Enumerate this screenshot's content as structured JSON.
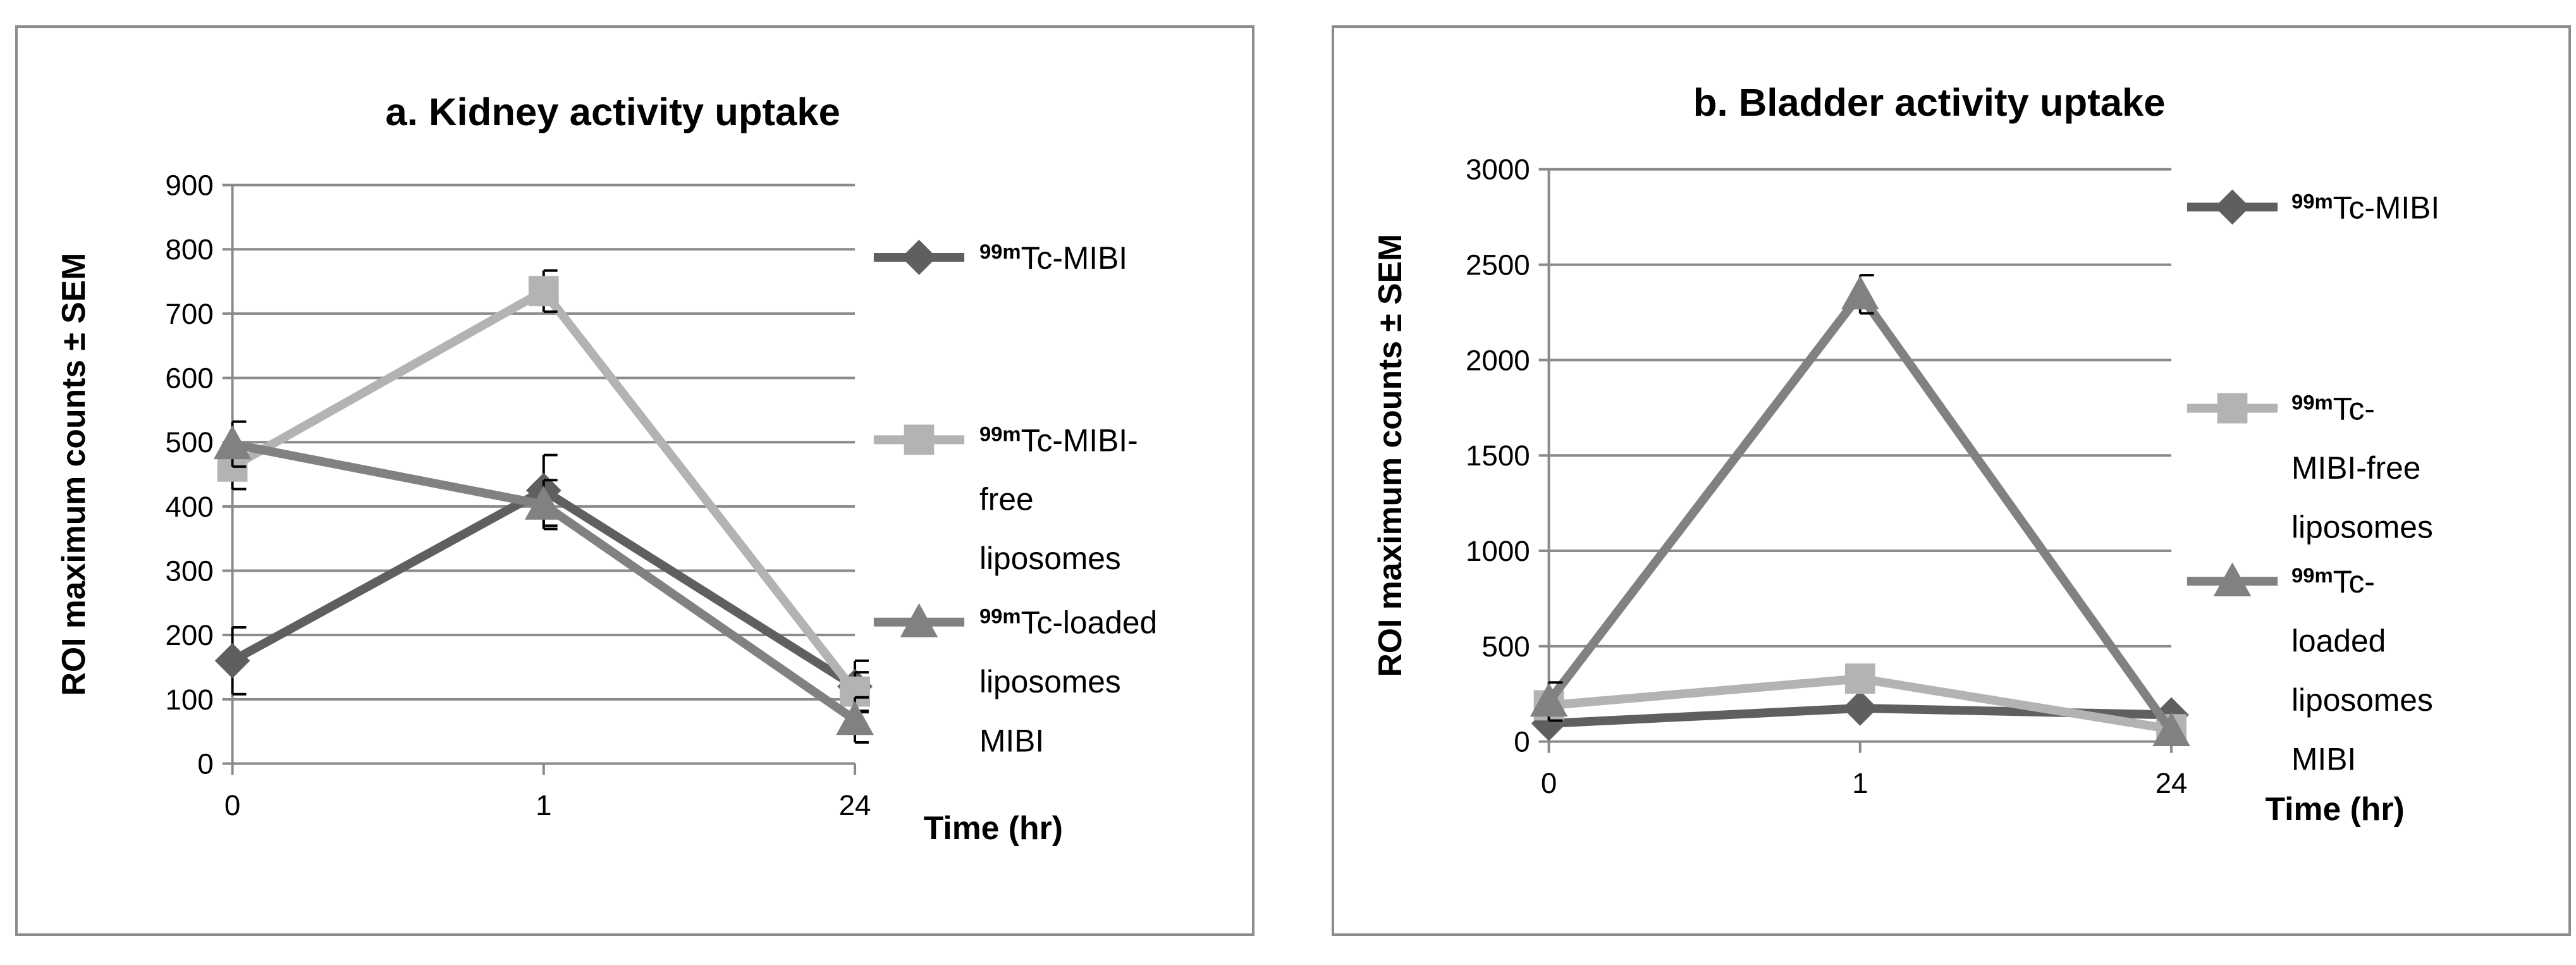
{
  "chart_data": [
    {
      "type": "line",
      "title": "a. Kidney activity uptake",
      "ylabel": "ROI maximum counts ± SEM",
      "xlabel": "Time (hr)",
      "categories": [
        "0",
        "1",
        "24"
      ],
      "ylim": [
        0,
        900
      ],
      "yticks": [
        0,
        100,
        200,
        300,
        400,
        500,
        600,
        700,
        800,
        900
      ],
      "grid": true,
      "legend_position": "right",
      "series": [
        {
          "name": "99mTc-MIBI",
          "sup": "99m",
          "label_lines": [
            "Tc-MIBI"
          ],
          "marker": "diamond",
          "color": "#5f5f5f",
          "values": [
            160,
            425,
            120
          ],
          "errors": [
            52,
            55,
            40
          ]
        },
        {
          "name": "99mTc-MIBI-free liposomes",
          "sup": "99m",
          "label_lines": [
            "Tc-MIBI-",
            "free",
            "liposomes"
          ],
          "marker": "square",
          "color": "#b3b3b3",
          "values": [
            462,
            735,
            112
          ],
          "errors": [
            35,
            32,
            30
          ]
        },
        {
          "name": "99mTc-loaded liposomes MIBI",
          "sup": "99m",
          "label_lines": [
            "Tc-loaded",
            "liposomes",
            "MIBI"
          ],
          "marker": "triangle",
          "color": "#818181",
          "values": [
            497,
            403,
            68
          ],
          "errors": [
            35,
            38,
            35
          ]
        }
      ]
    },
    {
      "type": "line",
      "title": "b. Bladder activity uptake",
      "ylabel": "ROI maximum counts ± SEM",
      "xlabel": "Time (hr)",
      "categories": [
        "0",
        "1",
        "24"
      ],
      "ylim": [
        0,
        3000
      ],
      "yticks": [
        0,
        500,
        1000,
        1500,
        2000,
        2500,
        3000
      ],
      "grid": true,
      "legend_position": "right",
      "series": [
        {
          "name": "99mTc-MIBI",
          "sup": "99m",
          "label_lines": [
            "Tc-MIBI"
          ],
          "marker": "diamond",
          "color": "#5f5f5f",
          "values": [
            95,
            175,
            140
          ],
          "errors": [
            0,
            0,
            0
          ]
        },
        {
          "name": "99mTc-MIBI-free liposomes",
          "sup": "99m",
          "label_lines": [
            "Tc-",
            "MIBI-free",
            "liposomes"
          ],
          "marker": "square",
          "color": "#b3b3b3",
          "values": [
            190,
            330,
            65
          ],
          "errors": [
            0,
            0,
            0
          ]
        },
        {
          "name": "99mTc-loaded liposomes MIBI",
          "sup": "99m",
          "label_lines": [
            "Tc-",
            "loaded",
            "liposomes",
            "MIBI"
          ],
          "marker": "triangle",
          "color": "#818181",
          "values": [
            210,
            2345,
            55
          ],
          "errors": [
            100,
            100,
            0
          ]
        }
      ]
    }
  ]
}
